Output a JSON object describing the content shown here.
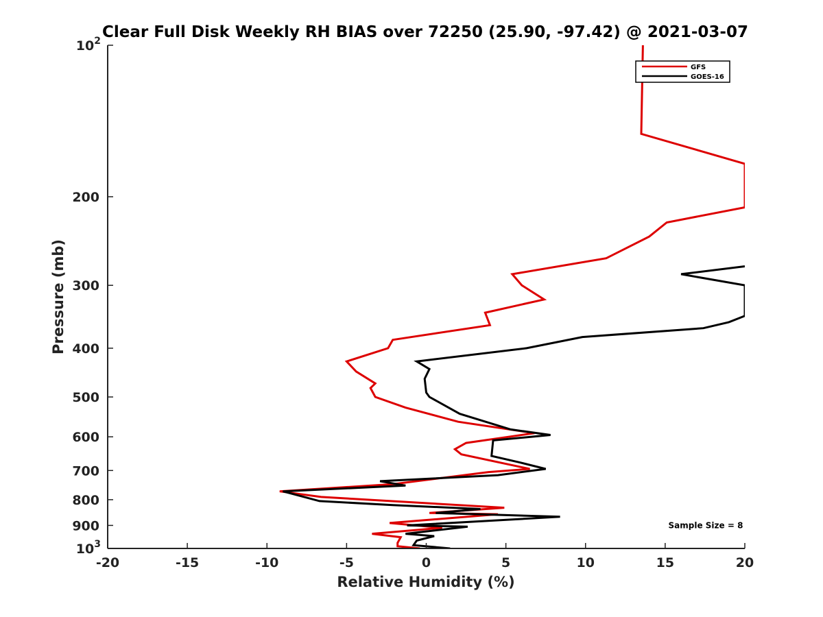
{
  "chart_data": {
    "type": "line",
    "title": "Clear Full Disk Weekly RH BIAS over 72250 (25.90, -97.42) @ 2021-03-07",
    "xlabel": "Relative Humidity (%)",
    "ylabel": "Pressure (mb)",
    "xlim": [
      -20,
      20
    ],
    "ylim": [
      100,
      1000
    ],
    "y_scale": "log",
    "y_reversed": true,
    "grid": false,
    "legend_position": "top-right",
    "x_ticks": [
      "-20",
      "-15",
      "-10",
      "-5",
      "0",
      "5",
      "10",
      "15",
      "20"
    ],
    "y_ticks": [
      {
        "value": 100,
        "base": "10",
        "exp": "2"
      },
      {
        "value": 200,
        "label": "200"
      },
      {
        "value": 300,
        "label": "300"
      },
      {
        "value": 400,
        "label": "400"
      },
      {
        "value": 500,
        "label": "500"
      },
      {
        "value": 600,
        "label": "600"
      },
      {
        "value": 700,
        "label": "700"
      },
      {
        "value": 800,
        "label": "800"
      },
      {
        "value": 900,
        "label": "900"
      },
      {
        "value": 1000,
        "base": "10",
        "exp": "3"
      }
    ],
    "series": [
      {
        "name": "GFS",
        "color": "#dd0000",
        "points": [
          [
            13.6,
            100
          ],
          [
            13.5,
            150
          ],
          [
            20.0,
            172
          ],
          [
            20.0,
            210
          ],
          [
            15.1,
            225
          ],
          [
            14.0,
            240
          ],
          [
            11.3,
            265
          ],
          [
            5.4,
            285
          ],
          [
            6.0,
            300
          ],
          [
            7.4,
            320
          ],
          [
            3.7,
            340
          ],
          [
            4.0,
            360
          ],
          [
            -2.1,
            385
          ],
          [
            -2.4,
            400
          ],
          [
            -5.0,
            425
          ],
          [
            -4.4,
            445
          ],
          [
            -3.2,
            470
          ],
          [
            -3.5,
            480
          ],
          [
            -3.2,
            500
          ],
          [
            -1.3,
            525
          ],
          [
            2.0,
            560
          ],
          [
            6.8,
            590
          ],
          [
            2.5,
            617
          ],
          [
            1.8,
            635
          ],
          [
            2.2,
            650
          ],
          [
            6.5,
            695
          ],
          [
            3.9,
            705
          ],
          [
            -2.1,
            745
          ],
          [
            -9.2,
            770
          ],
          [
            -6.6,
            790
          ],
          [
            4.9,
            830
          ],
          [
            0.2,
            850
          ],
          [
            4.5,
            855
          ],
          [
            -2.3,
            890
          ],
          [
            1.0,
            910
          ],
          [
            -3.4,
            935
          ],
          [
            -1.6,
            950
          ],
          [
            -1.8,
            975
          ],
          [
            -1.8,
            990
          ],
          [
            -0.4,
            1000
          ]
        ]
      },
      {
        "name": "GOES-16",
        "color": "#000000",
        "points": [
          [
            20.0,
            275
          ],
          [
            16.0,
            285
          ],
          [
            20.0,
            300
          ],
          [
            20.0,
            345
          ],
          [
            19.0,
            355
          ],
          [
            17.4,
            365
          ],
          [
            9.8,
            380
          ],
          [
            6.3,
            400
          ],
          [
            -0.6,
            425
          ],
          [
            0.2,
            440
          ],
          [
            -0.1,
            460
          ],
          [
            0.0,
            490
          ],
          [
            0.2,
            500
          ],
          [
            2.1,
            540
          ],
          [
            5.3,
            580
          ],
          [
            7.8,
            595
          ],
          [
            4.2,
            610
          ],
          [
            4.1,
            655
          ],
          [
            5.9,
            675
          ],
          [
            7.5,
            695
          ],
          [
            4.5,
            715
          ],
          [
            -2.9,
            735
          ],
          [
            -1.3,
            750
          ],
          [
            -9.0,
            770
          ],
          [
            -6.7,
            805
          ],
          [
            -2.1,
            820
          ],
          [
            3.4,
            835
          ],
          [
            0.6,
            850
          ],
          [
            8.4,
            865
          ],
          [
            -1.2,
            900
          ],
          [
            2.6,
            905
          ],
          [
            -1.3,
            935
          ],
          [
            0.5,
            945
          ],
          [
            -0.6,
            965
          ],
          [
            -0.8,
            985
          ],
          [
            1.5,
            1000
          ]
        ]
      }
    ],
    "legend": [
      "GFS",
      "GOES-16"
    ],
    "annotations": [
      {
        "text": "Sample Size = 8",
        "x": 15.2,
        "y": 900
      }
    ]
  }
}
